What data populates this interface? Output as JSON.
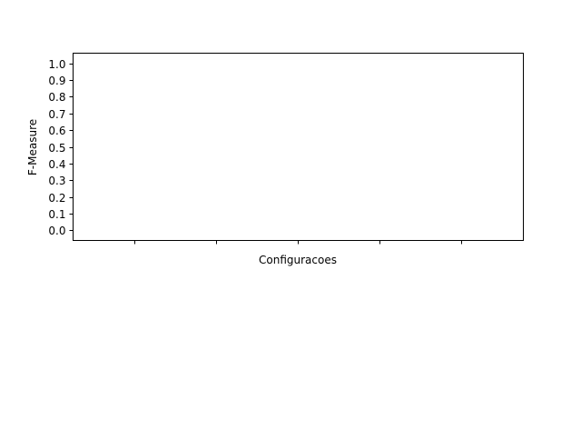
{
  "chart_data": {
    "type": "bar",
    "title": "",
    "xlabel": "Configuracoes",
    "ylabel": "F-Measure",
    "ylim": [
      -0.06,
      1.06
    ],
    "yticks": [
      "0.0",
      "0.1",
      "0.2",
      "0.3",
      "0.4",
      "0.5",
      "0.6",
      "0.7",
      "0.8",
      "0.9",
      "1.0"
    ],
    "categories": [
      "",
      "",
      "",
      "",
      ""
    ],
    "series": [],
    "grid": false,
    "legend": "none"
  }
}
